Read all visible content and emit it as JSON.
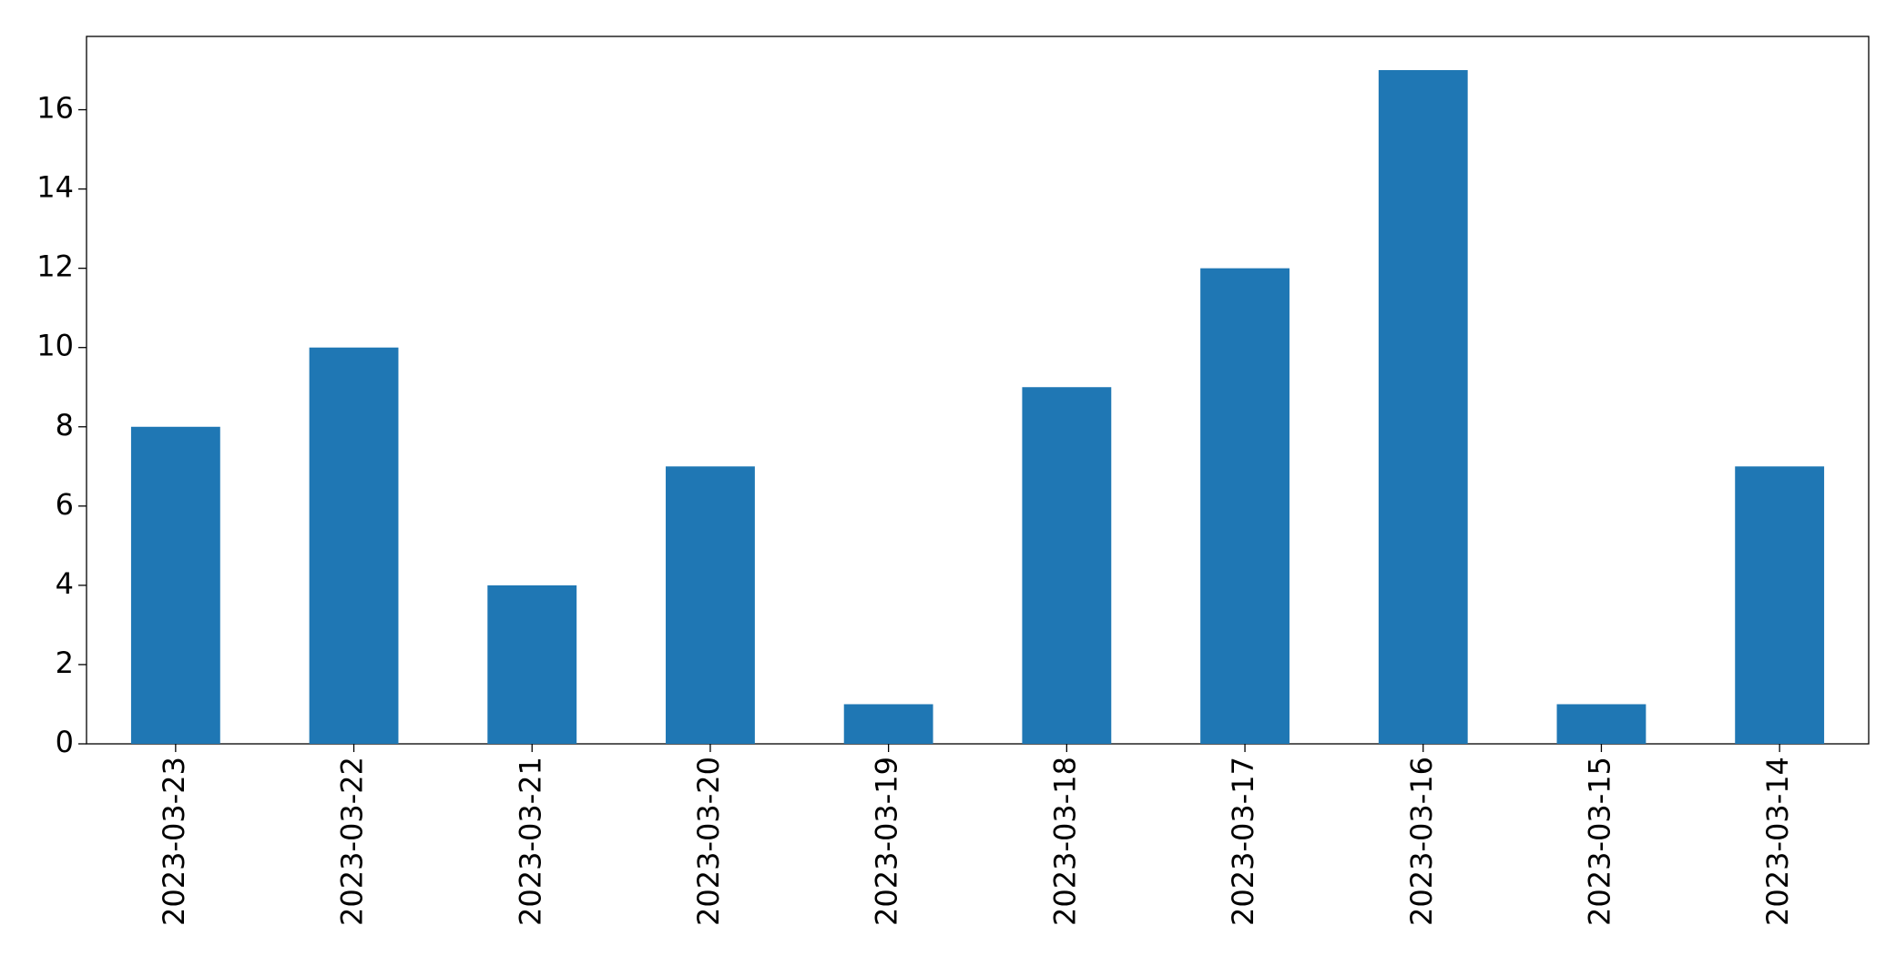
{
  "chart_data": {
    "type": "bar",
    "categories": [
      "2023-03-23",
      "2023-03-22",
      "2023-03-21",
      "2023-03-20",
      "2023-03-19",
      "2023-03-18",
      "2023-03-17",
      "2023-03-16",
      "2023-03-15",
      "2023-03-14"
    ],
    "values": [
      8,
      10,
      4,
      7,
      1,
      9,
      12,
      17,
      1,
      7
    ],
    "color": "#1f77b4",
    "ylim": [
      0,
      17.85
    ],
    "yticks": [
      0,
      2,
      4,
      6,
      8,
      10,
      12,
      14,
      16
    ],
    "grid": false
  }
}
